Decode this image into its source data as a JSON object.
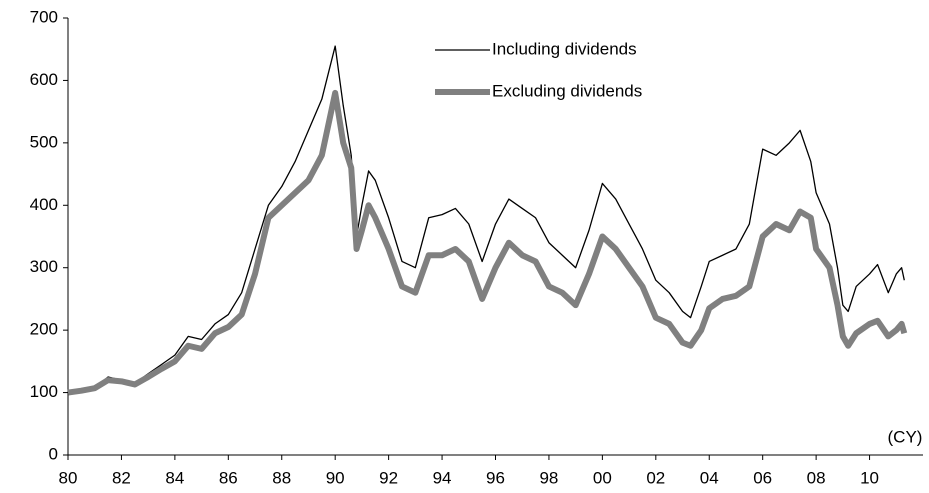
{
  "chart_data": {
    "type": "line",
    "annotation": "(CY)",
    "x": [
      1980,
      1980.5,
      1981,
      1981.5,
      1982,
      1982.5,
      1983,
      1983.5,
      1984,
      1984.5,
      1985,
      1985.5,
      1986,
      1986.5,
      1987,
      1987.5,
      1988,
      1988.5,
      1989,
      1989.5,
      1990,
      1990.3,
      1990.6,
      1990.8,
      1991,
      1991.25,
      1991.5,
      1992,
      1992.5,
      1993,
      1993.5,
      1994,
      1994.5,
      1995,
      1995.5,
      1996,
      1996.5,
      1997,
      1997.5,
      1998,
      1998.5,
      1999,
      1999.5,
      2000,
      2000.5,
      2001,
      2001.5,
      2002,
      2002.5,
      2003,
      2003.3,
      2003.7,
      2004,
      2004.5,
      2005,
      2005.5,
      2006,
      2006.5,
      2007,
      2007.4,
      2007.8,
      2008,
      2008.5,
      2008.8,
      2009,
      2009.2,
      2009.5,
      2010,
      2010.3,
      2010.7,
      2011,
      2011.2,
      2011.3
    ],
    "series": [
      {
        "name": "Including dividends",
        "color": "#000000",
        "width": 1.3,
        "values": [
          100,
          103,
          108,
          125,
          120,
          115,
          130,
          145,
          160,
          190,
          185,
          210,
          225,
          260,
          330,
          400,
          430,
          470,
          520,
          570,
          655,
          560,
          480,
          350,
          400,
          455,
          440,
          380,
          310,
          300,
          380,
          385,
          395,
          370,
          310,
          370,
          410,
          395,
          380,
          340,
          320,
          300,
          360,
          435,
          410,
          370,
          330,
          280,
          260,
          230,
          220,
          270,
          310,
          320,
          330,
          370,
          490,
          480,
          500,
          520,
          470,
          420,
          370,
          300,
          240,
          230,
          270,
          290,
          305,
          260,
          290,
          300,
          280
        ]
      },
      {
        "name": "Excluding dividends",
        "color": "#808080",
        "width": 6,
        "values": [
          100,
          103,
          107,
          120,
          118,
          113,
          125,
          138,
          150,
          175,
          170,
          195,
          205,
          225,
          290,
          380,
          400,
          420,
          440,
          480,
          580,
          500,
          460,
          330,
          360,
          400,
          380,
          330,
          270,
          260,
          320,
          320,
          330,
          310,
          250,
          300,
          340,
          320,
          310,
          270,
          260,
          240,
          290,
          350,
          330,
          300,
          270,
          220,
          210,
          180,
          175,
          200,
          235,
          250,
          255,
          270,
          350,
          370,
          360,
          390,
          380,
          330,
          300,
          240,
          190,
          175,
          195,
          210,
          215,
          190,
          200,
          210,
          195
        ]
      }
    ],
    "xlim": [
      1980,
      2012
    ],
    "xticks": [
      {
        "value": 1980,
        "label": "80"
      },
      {
        "value": 1982,
        "label": "82"
      },
      {
        "value": 1984,
        "label": "84"
      },
      {
        "value": 1986,
        "label": "86"
      },
      {
        "value": 1988,
        "label": "88"
      },
      {
        "value": 1990,
        "label": "90"
      },
      {
        "value": 1992,
        "label": "92"
      },
      {
        "value": 1994,
        "label": "94"
      },
      {
        "value": 1996,
        "label": "96"
      },
      {
        "value": 1998,
        "label": "98"
      },
      {
        "value": 2000,
        "label": "00"
      },
      {
        "value": 2002,
        "label": "02"
      },
      {
        "value": 2004,
        "label": "04"
      },
      {
        "value": 2006,
        "label": "06"
      },
      {
        "value": 2008,
        "label": "08"
      },
      {
        "value": 2010,
        "label": "10"
      }
    ],
    "ylim": [
      0,
      700
    ],
    "yticks": [
      0,
      100,
      200,
      300,
      400,
      500,
      600,
      700
    ],
    "grid": false,
    "legend": "upper center"
  }
}
